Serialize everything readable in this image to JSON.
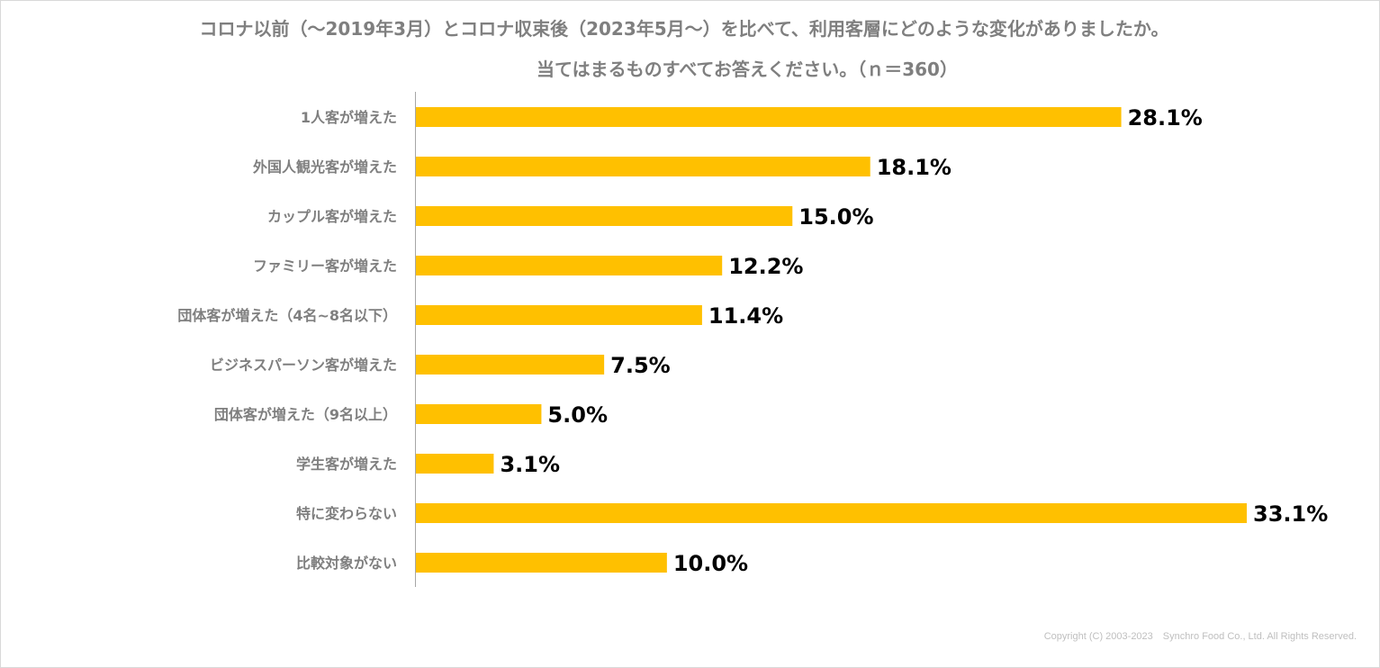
{
  "chart_data": {
    "type": "bar",
    "orientation": "horizontal",
    "title": "コロナ以前（～2019年3月）とコロナ収束後（2023年5月～）を比べて、利用客層にどのような変化がありましたか。",
    "subtitle": "当てはまるものすべてお答えください。（ｎ＝360）",
    "categories": [
      "1人客が増えた",
      "外国人観光客が増えた",
      "カップル客が増えた",
      "ファミリー客が増えた",
      "団体客が増えた（4名~8名以下）",
      "ビジネスパーソン客が増えた",
      "団体客が増えた（9名以上）",
      "学生客が増えた",
      "特に変わらない",
      "比較対象がない"
    ],
    "values": [
      28.1,
      18.1,
      15.0,
      12.2,
      11.4,
      7.5,
      5.0,
      3.1,
      33.1,
      10.0
    ],
    "value_labels": [
      "28.1%",
      "18.1%",
      "15.0%",
      "12.2%",
      "11.4%",
      "7.5%",
      "5.0%",
      "3.1%",
      "33.1%",
      "10.0%"
    ],
    "xlim": [
      0,
      33.1
    ],
    "bar_color": "#FFC000",
    "grid": false,
    "legend": "none"
  },
  "footer": {
    "copyright": "Copyright (C) 2003-2023　Synchro Food Co., Ltd. All Rights Reserved."
  }
}
